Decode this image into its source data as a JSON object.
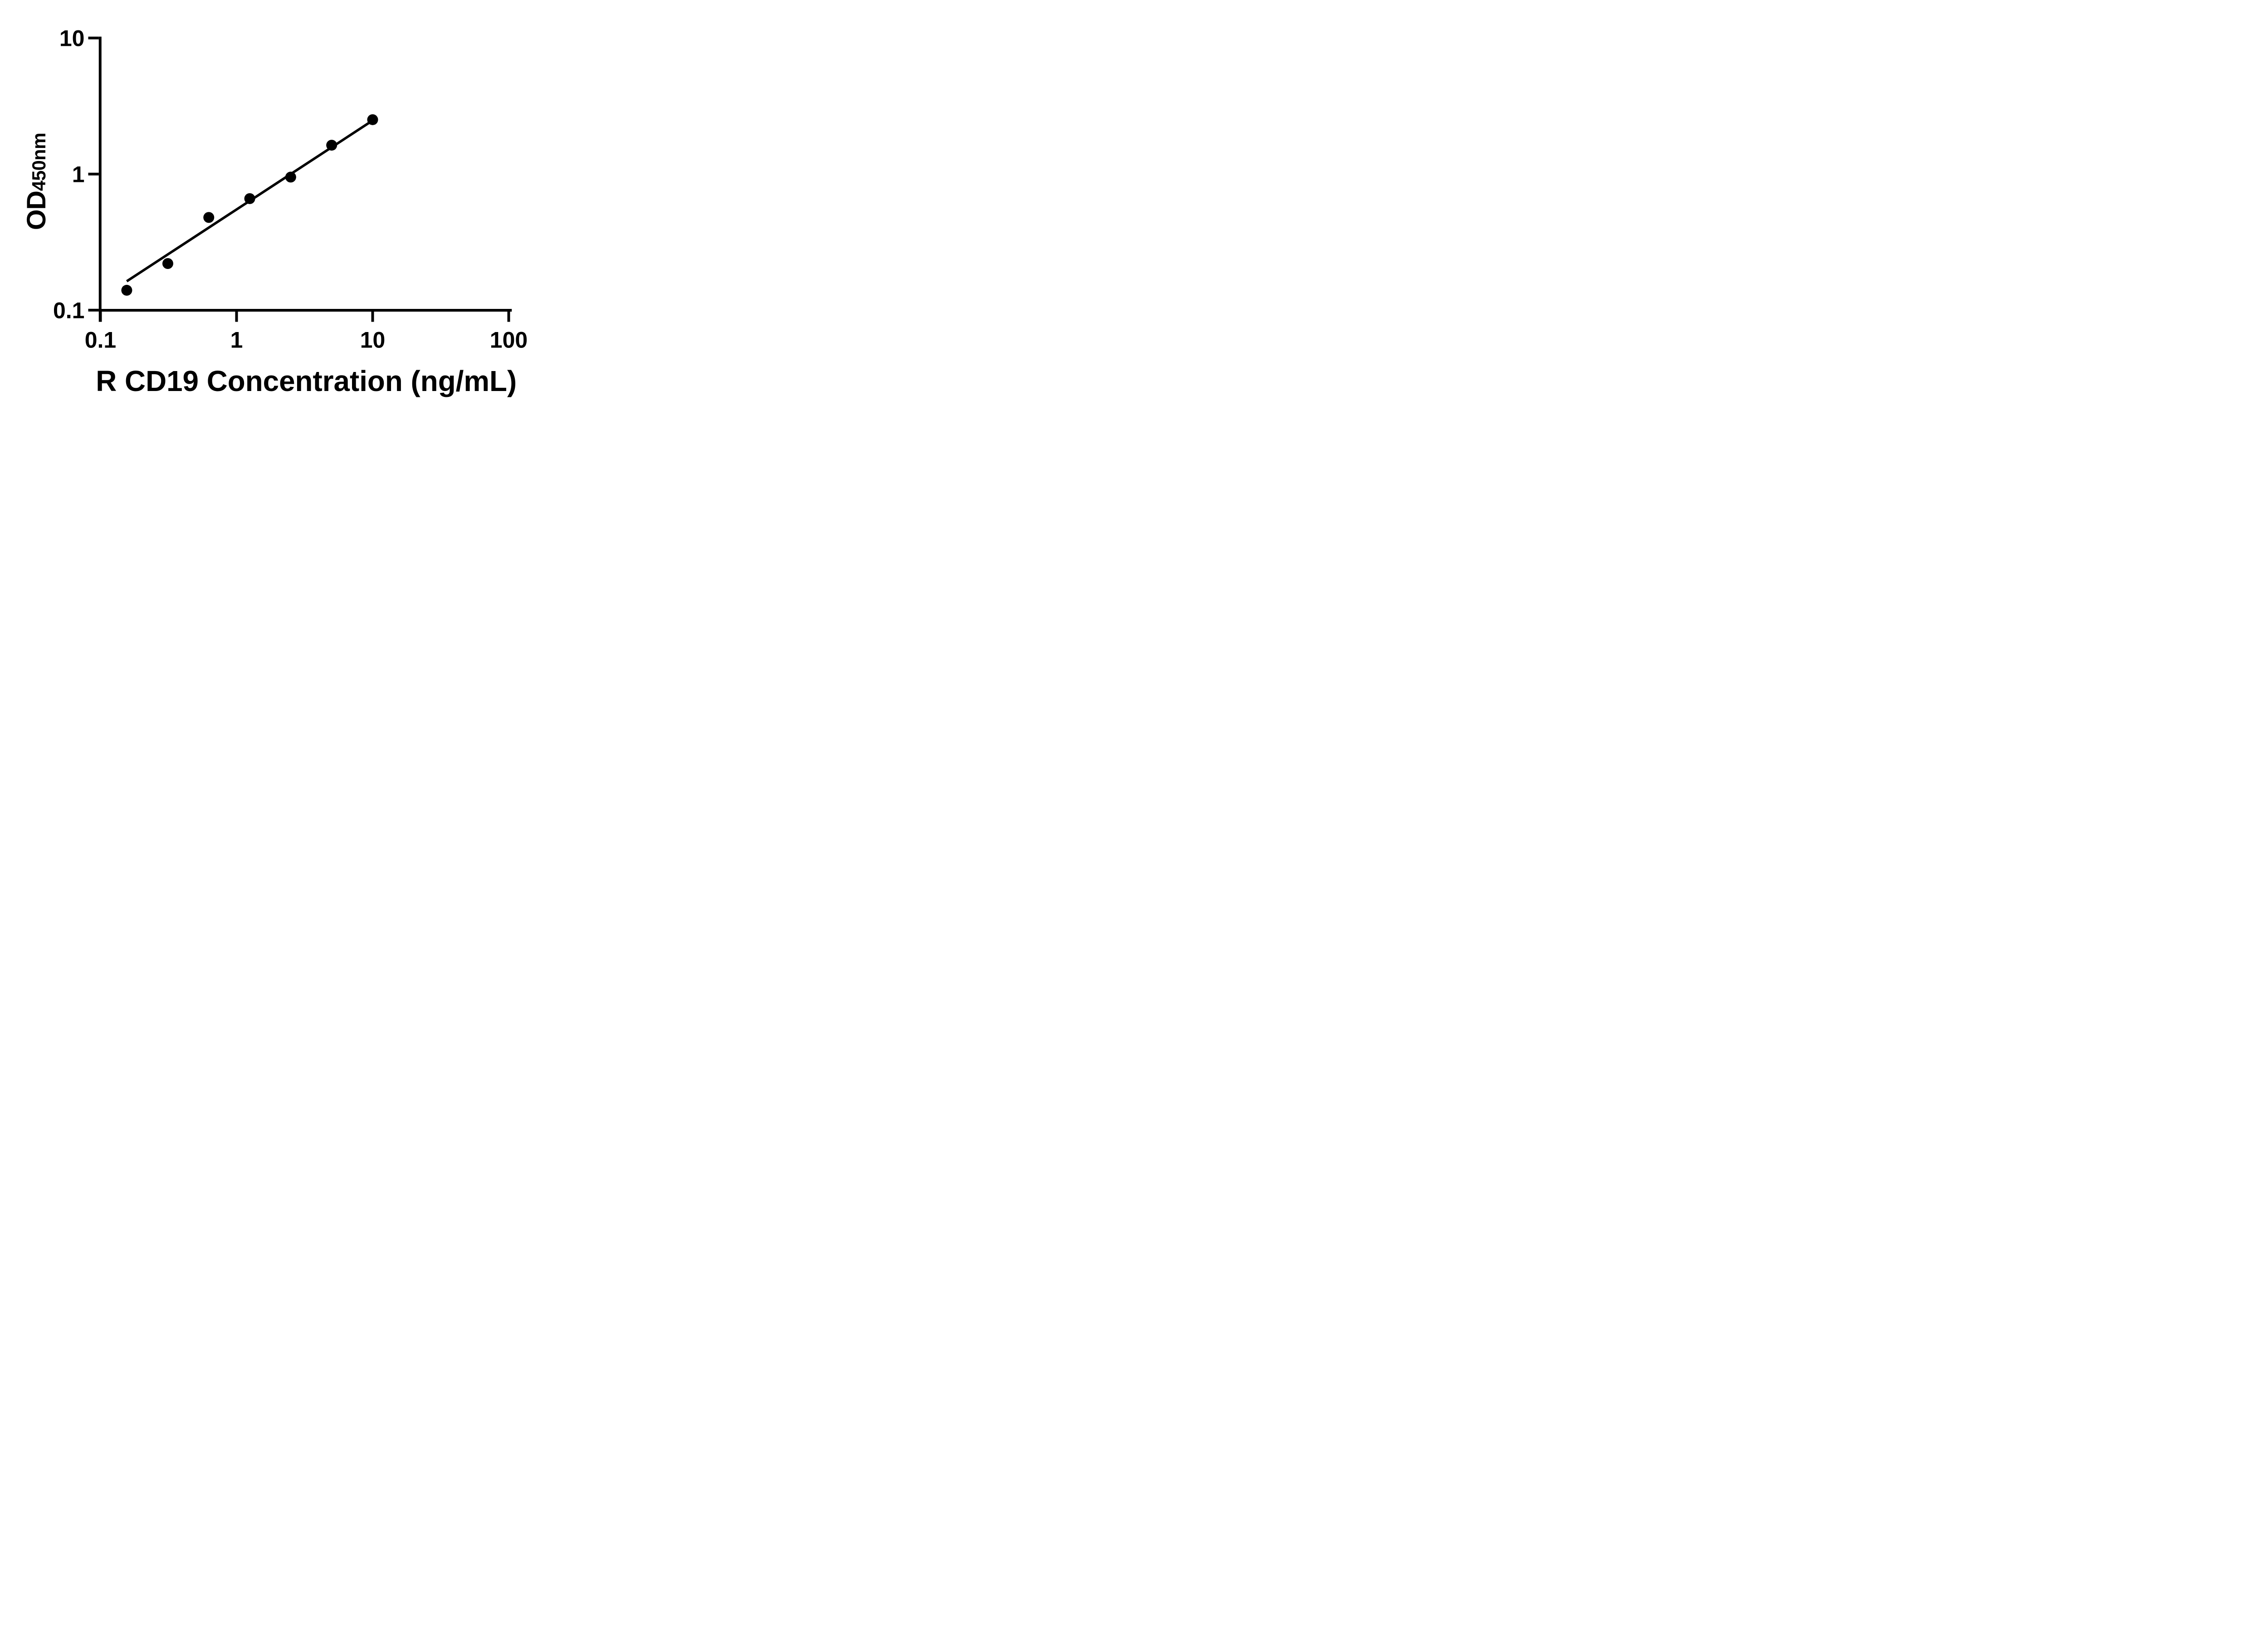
{
  "figure": {
    "background_color": "#ffffff",
    "foreground_color": "#000000"
  },
  "chart_data": {
    "type": "scatter",
    "title": "",
    "xlabel": "R CD19 Concentration (ng/mL)",
    "ylabel": "OD",
    "ylabel_subscript": "450nm",
    "xscale": "log",
    "yscale": "log",
    "xlim": [
      0.1,
      100
    ],
    "ylim": [
      0.1,
      10
    ],
    "x_ticks": [
      0.1,
      1,
      10,
      100
    ],
    "x_tick_labels": [
      "0.1",
      "1",
      "10",
      "100"
    ],
    "y_ticks": [
      0.1,
      1,
      10
    ],
    "y_tick_labels": [
      "0.1",
      "1",
      "10"
    ],
    "grid": false,
    "legend_position": "none",
    "marker": "filled-circle",
    "marker_color": "#000000",
    "line_color": "#000000",
    "series": [
      {
        "name": "standard-curve-points",
        "type": "scatter",
        "points": [
          {
            "x": 0.156,
            "y": 0.14
          },
          {
            "x": 0.3125,
            "y": 0.22
          },
          {
            "x": 0.625,
            "y": 0.48
          },
          {
            "x": 1.25,
            "y": 0.66
          },
          {
            "x": 2.5,
            "y": 0.95
          },
          {
            "x": 5,
            "y": 1.63
          },
          {
            "x": 10,
            "y": 2.51
          }
        ]
      },
      {
        "name": "trend-line",
        "type": "line",
        "points": [
          {
            "x": 0.156,
            "y": 0.163
          },
          {
            "x": 9.9,
            "y": 2.46
          }
        ]
      }
    ]
  }
}
